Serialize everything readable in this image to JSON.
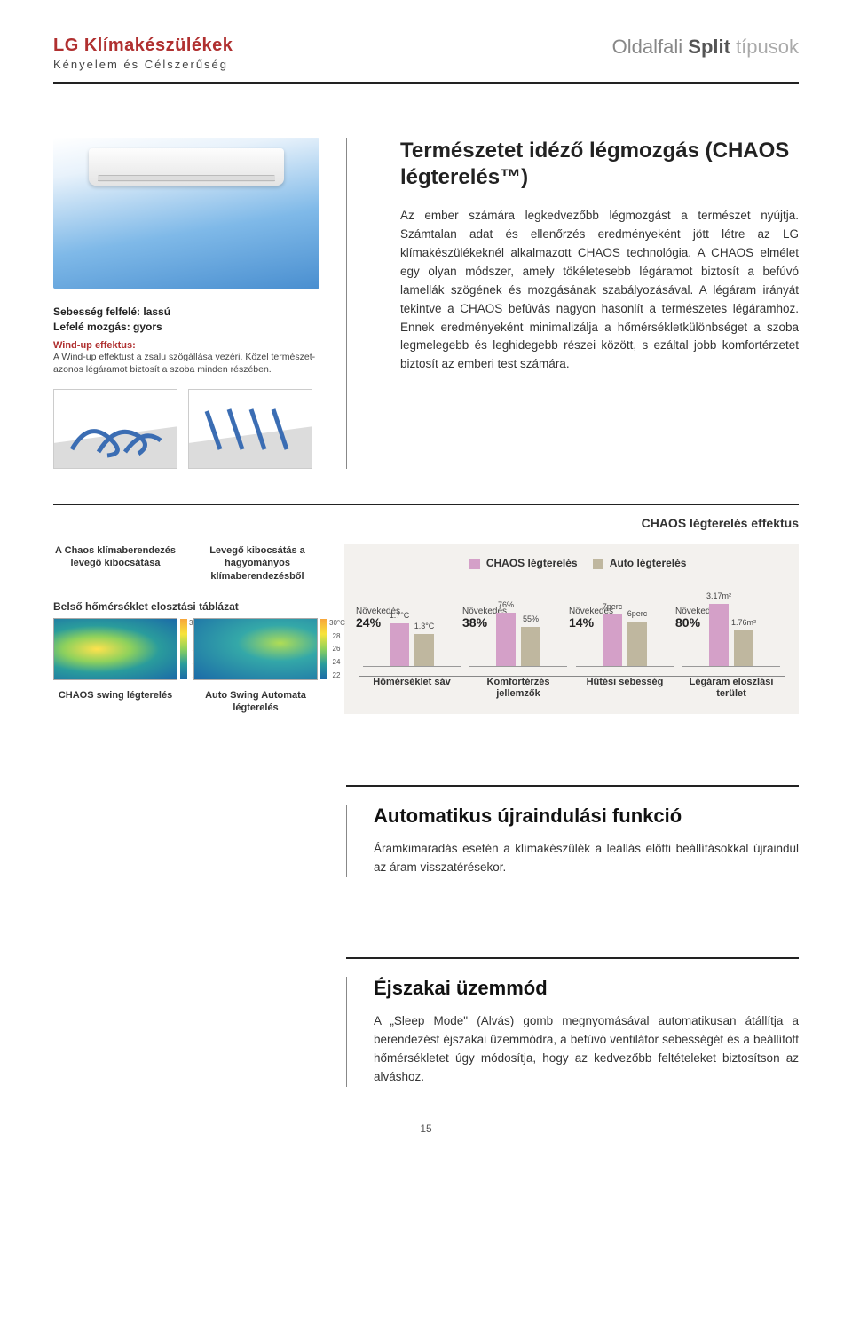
{
  "header": {
    "brand_title": "LG Klímakészülékek",
    "brand_sub": "Kényelem és Célszerűség",
    "right_1": "Oldalfali",
    "right_2": "Split",
    "right_3": "típusok"
  },
  "chaos": {
    "title": "Természetet idéző légmozgás (CHAOS légterelés™)",
    "body": "Az ember számára legkedvezőbb légmozgást a természet nyújtja. Számtalan adat és ellenőrzés eredményeként jött létre az LG klímakészülékeknél alkalmazott CHAOS technológia. A CHAOS elmélet egy olyan módszer, amely tökéletesebb légáramot biztosít a befúvó lamellák szögének és mozgásának szabályozásával. A légáram irányát tekintve a CHAOS befúvás nagyon hasonlít a természetes légáramhoz. Ennek eredményeként minimalizálja a hőmérsékletkülönbséget a szoba legmelegebb és leghidegebb részei között, s ezáltal jobb komfortérzetet biztosít az emberi test számára.",
    "speed_line1": "Sebesség felfelé: lassú",
    "speed_line2": "Lefelé mozgás: gyors",
    "windup_title": "Wind-up effektus:",
    "windup_desc": "A Wind-up effektust a zsalu szögállása vezéri. Közel természet-azonos légáramot biztosít a szoba minden részében."
  },
  "effect": {
    "section_title": "CHAOS légterelés effektus",
    "left_label_chaos": "A Chaos klímaberendezés levegő kibocsátása",
    "left_label_conv": "Levegő kibocsátás a hagyományos klímaberendezésből",
    "dist_title": "Belső hőmérséklet elosztási táblázat",
    "swing_chaos": "CHAOS swing légterelés",
    "swing_auto": "Auto Swing Automata légterelés",
    "heat_scale": [
      "30°C",
      "28",
      "26",
      "24",
      "22"
    ],
    "legend_chaos": "CHAOS légterelés",
    "legend_auto": "Auto légterelés",
    "groups": [
      {
        "grow_label": "Növekedés",
        "grow_pct": "24%",
        "chaos_h": 48,
        "chaos_top": "1.7°C",
        "auto_h": 36,
        "auto_top": "1.3°C",
        "cat": "Hőmérséklet sáv"
      },
      {
        "grow_label": "Növekedés",
        "grow_pct": "38%",
        "chaos_h": 60,
        "chaos_top": "76%",
        "auto_h": 44,
        "auto_top": "55%",
        "cat": "Komfortérzés jellemzők"
      },
      {
        "grow_label": "Növekedés",
        "grow_pct": "14%",
        "chaos_h": 58,
        "chaos_top": "7perc",
        "auto_h": 50,
        "auto_top": "6perc",
        "cat": "Hűtési sebesség"
      },
      {
        "grow_label": "Növekedés",
        "grow_pct": "80%",
        "chaos_h": 70,
        "chaos_top": "3.17m²",
        "auto_h": 40,
        "auto_top": "1.76m²",
        "cat": "Légáram eloszlási terület"
      }
    ]
  },
  "auto_restart": {
    "title": "Automatikus újraindulási funkció",
    "body": "Áramkimaradás esetén a klímakészülék a leállás előtti beállításokkal újraindul az áram visszatérésekor."
  },
  "night_mode": {
    "title": "Éjszakai üzemmód",
    "body": "A „Sleep Mode\" (Alvás) gomb megnyomásával automatikusan átállítja a berendezést éjszakai üzemmódra, a befúvó ventilátor sebességét és a beállított hőmérsékletet úgy módosítja, hogy az kedvezőbb feltételeket biztosítson az alváshoz."
  },
  "page_number": "15",
  "colors": {
    "brand_red": "#b03030",
    "text_dark": "#222222",
    "chaos_bar": "#d4a0c8",
    "auto_bar": "#bfb79f",
    "chart_bg": "#f3f1ee"
  }
}
